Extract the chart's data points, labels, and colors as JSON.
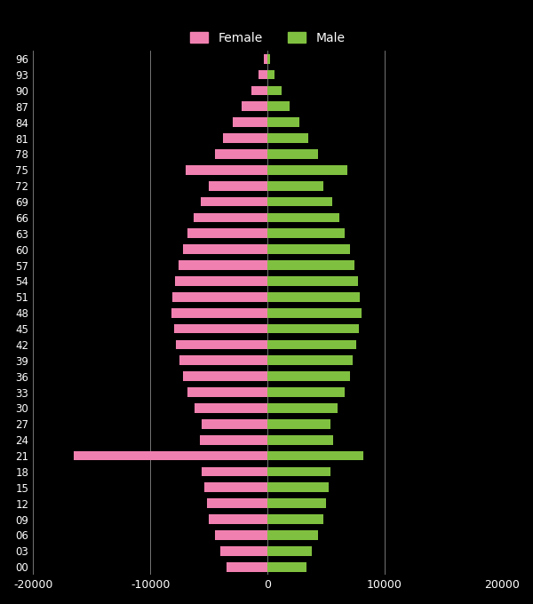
{
  "ages": [
    "00",
    "03",
    "06",
    "09",
    "12",
    "15",
    "18",
    "21",
    "24",
    "27",
    "30",
    "33",
    "36",
    "39",
    "42",
    "45",
    "48",
    "51",
    "54",
    "57",
    "60",
    "63",
    "66",
    "69",
    "72",
    "75",
    "78",
    "81",
    "84",
    "87",
    "90",
    "93",
    "96"
  ],
  "female": [
    -3500,
    -4000,
    -4500,
    -5000,
    -5200,
    -5400,
    -5600,
    -16500,
    -5800,
    -5600,
    -6200,
    -6800,
    -7200,
    -7500,
    -7800,
    -8000,
    -8200,
    -8100,
    -7900,
    -7600,
    -7200,
    -6800,
    -6300,
    -5700,
    -5000,
    -7000,
    -4500,
    -3800,
    -3000,
    -2200,
    -1400,
    -800,
    -350
  ],
  "male": [
    3300,
    3800,
    4300,
    4800,
    5000,
    5200,
    5400,
    8200,
    5600,
    5400,
    6000,
    6600,
    7000,
    7300,
    7600,
    7800,
    8000,
    7900,
    7700,
    7400,
    7000,
    6600,
    6100,
    5500,
    4800,
    6800,
    4300,
    3500,
    2700,
    1900,
    1200,
    600,
    250
  ],
  "female_color": "#f080b0",
  "male_color": "#80c040",
  "background_color": "#000000",
  "text_color": "#ffffff",
  "grid_color": "#888888",
  "bar_height": 0.6,
  "xlim": [
    -20000,
    20000
  ],
  "xticks": [
    -20000,
    -10000,
    0,
    10000,
    20000
  ],
  "legend_labels": [
    "Female",
    "Male"
  ],
  "figsize": [
    6.0,
    6.8
  ],
  "dpi": 100
}
